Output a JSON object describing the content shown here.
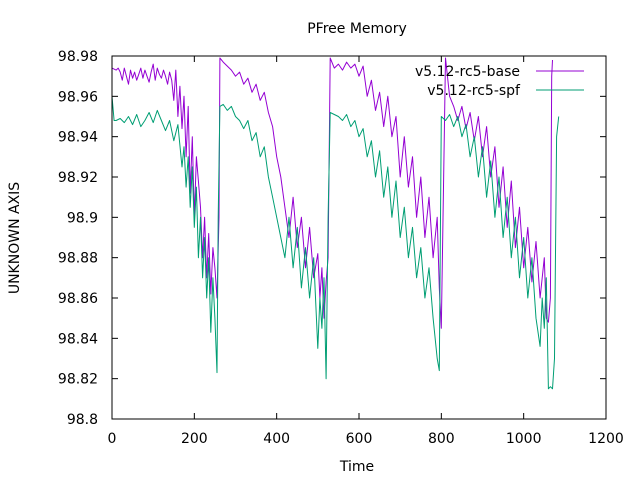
{
  "chart_data": {
    "type": "line",
    "title": "PFree Memory",
    "xlabel": "Time",
    "ylabel": "UNKNOWN AXIS",
    "xlim": [
      0,
      1200
    ],
    "ylim": [
      98.8,
      98.98
    ],
    "xticks": [
      0,
      200,
      400,
      600,
      800,
      1000,
      1200
    ],
    "xtick_labels": [
      "0",
      "200",
      "400",
      "600",
      "800",
      "1000",
      "1200"
    ],
    "yticks": [
      98.8,
      98.82,
      98.84,
      98.86,
      98.88,
      98.9,
      98.92,
      98.94,
      98.96,
      98.98
    ],
    "ytick_labels": [
      "98.8",
      "98.82",
      "98.84",
      "98.86",
      "98.88",
      "98.9",
      "98.92",
      "98.94",
      "98.96",
      "98.98"
    ],
    "grid": false,
    "legend_position": "top-right",
    "series": [
      {
        "name": "v5.12-rc5-base",
        "color": "#9400d3",
        "x": [
          0,
          10,
          15,
          20,
          25,
          30,
          40,
          45,
          50,
          55,
          60,
          65,
          70,
          75,
          80,
          85,
          90,
          95,
          100,
          105,
          110,
          115,
          120,
          125,
          130,
          135,
          140,
          145,
          150,
          155,
          160,
          165,
          170,
          175,
          180,
          185,
          190,
          195,
          200,
          205,
          210,
          215,
          220,
          225,
          230,
          235,
          240,
          245,
          250,
          255,
          260,
          262,
          270,
          280,
          290,
          300,
          310,
          320,
          330,
          340,
          350,
          360,
          370,
          380,
          390,
          400,
          410,
          420,
          430,
          440,
          450,
          460,
          470,
          480,
          490,
          500,
          505,
          510,
          515,
          520,
          525,
          530,
          540,
          550,
          560,
          570,
          580,
          590,
          600,
          610,
          620,
          630,
          640,
          650,
          660,
          670,
          680,
          690,
          700,
          710,
          720,
          730,
          740,
          750,
          760,
          770,
          780,
          790,
          795,
          800,
          810,
          820,
          830,
          840,
          850,
          860,
          870,
          880,
          890,
          900,
          910,
          920,
          930,
          940,
          950,
          960,
          970,
          980,
          990,
          1000,
          1010,
          1020,
          1030,
          1040,
          1050,
          1055,
          1060,
          1065,
          1068,
          1070
        ],
        "y": [
          98.974,
          98.973,
          98.974,
          98.972,
          98.968,
          98.974,
          98.966,
          98.973,
          98.969,
          98.972,
          98.968,
          98.971,
          98.974,
          98.969,
          98.973,
          98.97,
          98.967,
          98.972,
          98.976,
          98.968,
          98.974,
          98.971,
          98.969,
          98.973,
          98.97,
          98.966,
          98.972,
          98.968,
          98.958,
          98.973,
          98.95,
          98.965,
          98.944,
          98.96,
          98.93,
          98.955,
          98.912,
          98.94,
          98.9,
          98.93,
          98.918,
          98.905,
          98.88,
          98.9,
          98.87,
          98.892,
          98.862,
          98.885,
          98.875,
          98.86,
          98.9,
          98.979,
          98.977,
          98.975,
          98.973,
          98.97,
          98.972,
          98.966,
          98.969,
          98.962,
          98.966,
          98.958,
          98.962,
          98.952,
          98.945,
          98.93,
          98.92,
          98.905,
          98.89,
          98.91,
          98.885,
          98.9,
          98.875,
          98.895,
          98.87,
          98.882,
          98.86,
          98.875,
          98.85,
          98.868,
          98.88,
          98.979,
          98.974,
          98.976,
          98.973,
          98.977,
          98.974,
          98.976,
          98.97,
          98.975,
          98.96,
          98.968,
          98.953,
          98.962,
          98.945,
          98.96,
          98.94,
          98.95,
          98.92,
          98.94,
          98.915,
          98.93,
          98.9,
          98.92,
          98.89,
          98.91,
          98.88,
          98.9,
          98.865,
          98.845,
          98.979,
          98.96,
          98.955,
          98.948,
          98.955,
          98.944,
          98.952,
          98.938,
          98.95,
          98.93,
          98.945,
          98.92,
          98.935,
          98.905,
          98.925,
          98.895,
          98.918,
          98.885,
          98.905,
          98.875,
          98.895,
          98.868,
          98.888,
          98.86,
          98.88,
          98.85,
          98.848,
          98.86,
          98.97,
          98.978
        ]
      },
      {
        "name": "v5.12-rc5-spf",
        "color": "#009e73",
        "x": [
          0,
          5,
          10,
          20,
          30,
          40,
          50,
          60,
          70,
          80,
          90,
          100,
          110,
          120,
          130,
          140,
          150,
          160,
          170,
          175,
          180,
          185,
          190,
          195,
          200,
          205,
          210,
          215,
          220,
          225,
          230,
          235,
          240,
          245,
          250,
          255,
          258,
          262,
          270,
          280,
          290,
          300,
          310,
          320,
          330,
          340,
          350,
          360,
          370,
          380,
          390,
          400,
          410,
          420,
          430,
          440,
          450,
          460,
          470,
          480,
          490,
          500,
          505,
          510,
          515,
          520,
          525,
          530,
          540,
          550,
          560,
          570,
          580,
          590,
          600,
          610,
          620,
          630,
          640,
          650,
          660,
          670,
          680,
          690,
          700,
          710,
          720,
          730,
          740,
          750,
          760,
          770,
          780,
          790,
          795,
          800,
          810,
          820,
          830,
          840,
          850,
          860,
          870,
          880,
          890,
          900,
          910,
          920,
          930,
          940,
          950,
          960,
          970,
          980,
          990,
          1000,
          1010,
          1020,
          1030,
          1040,
          1045,
          1050,
          1055,
          1060,
          1065,
          1070,
          1075,
          1080,
          1085
        ],
        "y": [
          98.96,
          98.948,
          98.948,
          98.949,
          98.947,
          98.95,
          98.946,
          98.951,
          98.945,
          98.948,
          98.952,
          98.947,
          98.953,
          98.948,
          98.943,
          98.948,
          98.938,
          98.946,
          98.925,
          98.935,
          98.915,
          98.93,
          98.905,
          98.925,
          98.895,
          98.915,
          98.88,
          98.9,
          98.87,
          98.89,
          98.86,
          98.88,
          98.843,
          98.87,
          98.85,
          98.823,
          98.9,
          98.955,
          98.956,
          98.953,
          98.955,
          98.95,
          98.948,
          98.944,
          98.948,
          98.938,
          98.942,
          98.93,
          98.935,
          98.92,
          98.91,
          98.9,
          98.89,
          98.88,
          98.9,
          98.875,
          98.895,
          98.865,
          98.885,
          98.86,
          98.88,
          98.835,
          98.86,
          98.845,
          98.87,
          98.82,
          98.9,
          98.952,
          98.951,
          98.95,
          98.948,
          98.951,
          98.945,
          98.948,
          98.94,
          98.944,
          98.93,
          98.938,
          98.92,
          98.933,
          98.91,
          98.925,
          98.9,
          98.918,
          98.89,
          98.905,
          98.88,
          98.895,
          98.87,
          98.885,
          98.86,
          98.875,
          98.85,
          98.83,
          98.824,
          98.95,
          98.948,
          98.951,
          98.945,
          98.95,
          98.94,
          98.946,
          98.93,
          98.94,
          98.92,
          98.935,
          98.91,
          98.928,
          98.9,
          98.92,
          98.89,
          98.91,
          98.88,
          98.9,
          98.87,
          98.89,
          98.86,
          98.88,
          98.85,
          98.836,
          98.86,
          98.845,
          98.87,
          98.815,
          98.816,
          98.815,
          98.83,
          98.94,
          98.95
        ]
      }
    ]
  }
}
